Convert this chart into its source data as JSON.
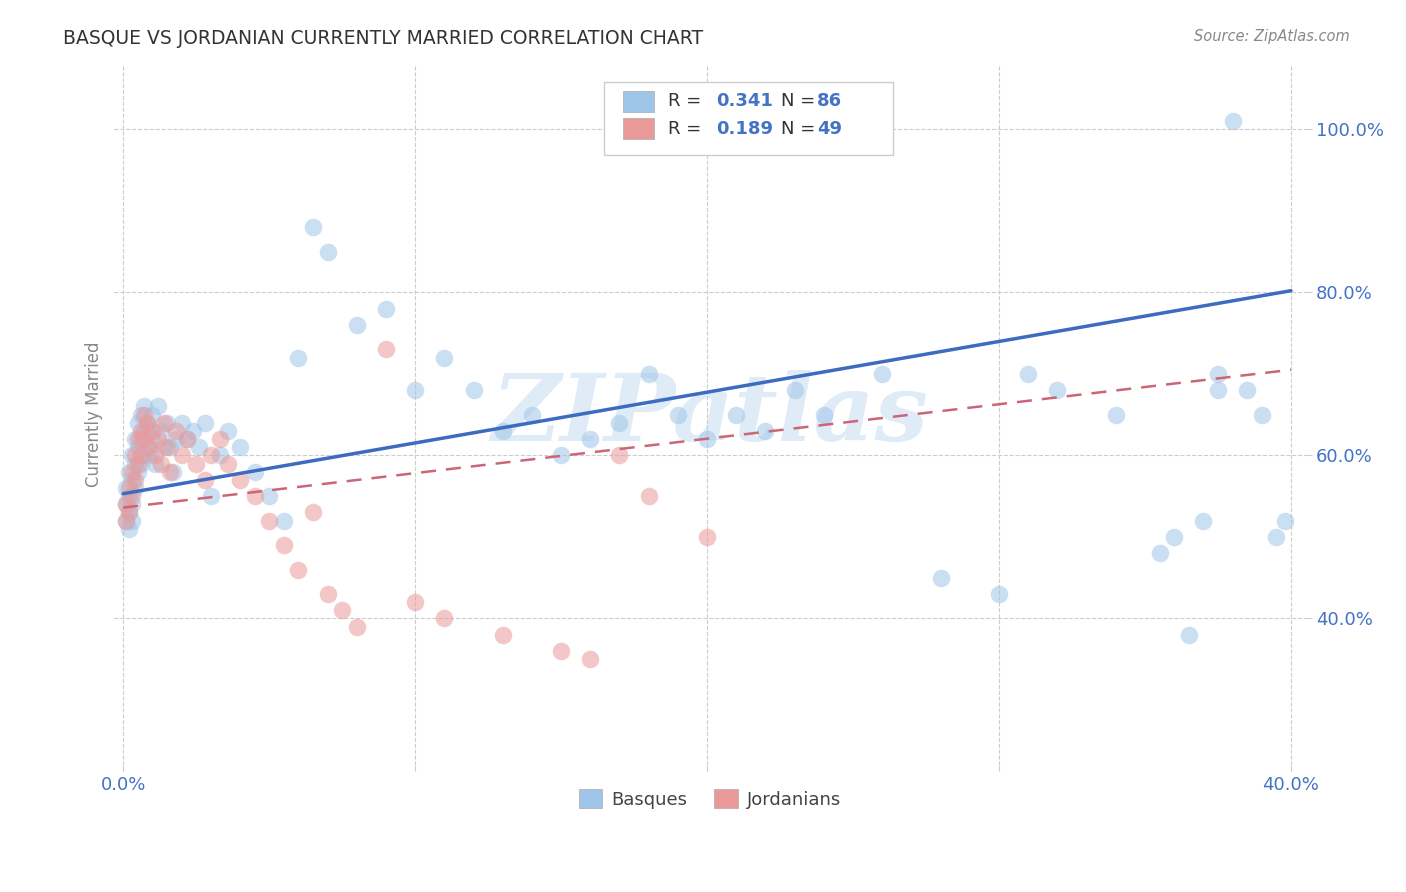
{
  "title": "BASQUE VS JORDANIAN CURRENTLY MARRIED CORRELATION CHART",
  "source": "Source: ZipAtlas.com",
  "ylabel": "Currently Married",
  "label_basque": "Basques",
  "label_jordanian": "Jordanians",
  "watermark": "ZIPatlas",
  "R_basque": "0.341",
  "N_basque": "86",
  "R_jordanian": "0.189",
  "N_jordanian": "49",
  "xlim": [
    -0.003,
    0.405
  ],
  "ylim": [
    0.22,
    1.08
  ],
  "yticks": [
    0.4,
    0.6,
    0.8,
    1.0
  ],
  "ytick_labels": [
    "40.0%",
    "60.0%",
    "80.0%",
    "100.0%"
  ],
  "xticks": [
    0.0,
    0.1,
    0.2,
    0.3,
    0.4
  ],
  "xtick_labels": [
    "0.0%",
    "",
    "",
    "",
    "40.0%"
  ],
  "basque_color": "#9fc5e8",
  "jordanian_color": "#ea9999",
  "basque_line_color": "#3d6bbf",
  "jordanian_line_color": "#cc6677",
  "axis_tick_color": "#4472c4",
  "grid_color": "#cccccc",
  "background_color": "#ffffff",
  "title_color": "#333333",
  "source_color": "#888888",
  "ylabel_color": "#888888",
  "marker_size": 160,
  "marker_alpha": 0.55,
  "basque_line_x": [
    0.0,
    0.4
  ],
  "basque_line_y": [
    0.553,
    0.802
  ],
  "jordanian_line_x": [
    0.0,
    0.4
  ],
  "jordanian_line_y": [
    0.536,
    0.705
  ],
  "basque_x": [
    0.001,
    0.001,
    0.001,
    0.002,
    0.002,
    0.002,
    0.002,
    0.003,
    0.003,
    0.003,
    0.003,
    0.004,
    0.004,
    0.004,
    0.005,
    0.005,
    0.005,
    0.006,
    0.006,
    0.006,
    0.007,
    0.007,
    0.007,
    0.008,
    0.008,
    0.009,
    0.009,
    0.01,
    0.01,
    0.011,
    0.012,
    0.013,
    0.014,
    0.015,
    0.016,
    0.017,
    0.018,
    0.02,
    0.022,
    0.024,
    0.026,
    0.028,
    0.03,
    0.033,
    0.036,
    0.04,
    0.045,
    0.05,
    0.055,
    0.06,
    0.065,
    0.07,
    0.08,
    0.09,
    0.1,
    0.11,
    0.12,
    0.13,
    0.14,
    0.15,
    0.16,
    0.17,
    0.18,
    0.19,
    0.2,
    0.21,
    0.22,
    0.23,
    0.24,
    0.26,
    0.28,
    0.3,
    0.31,
    0.32,
    0.34,
    0.355,
    0.365,
    0.375,
    0.385,
    0.39,
    0.395,
    0.398,
    0.38,
    0.375,
    0.37,
    0.36
  ],
  "basque_y": [
    0.56,
    0.54,
    0.52,
    0.58,
    0.55,
    0.53,
    0.51,
    0.6,
    0.57,
    0.54,
    0.52,
    0.62,
    0.59,
    0.56,
    0.64,
    0.61,
    0.58,
    0.65,
    0.62,
    0.59,
    0.66,
    0.63,
    0.6,
    0.64,
    0.61,
    0.63,
    0.6,
    0.65,
    0.62,
    0.59,
    0.66,
    0.63,
    0.61,
    0.64,
    0.61,
    0.58,
    0.62,
    0.64,
    0.62,
    0.63,
    0.61,
    0.64,
    0.55,
    0.6,
    0.63,
    0.61,
    0.58,
    0.55,
    0.52,
    0.72,
    0.88,
    0.85,
    0.76,
    0.78,
    0.68,
    0.72,
    0.68,
    0.63,
    0.65,
    0.6,
    0.62,
    0.64,
    0.7,
    0.65,
    0.62,
    0.65,
    0.63,
    0.68,
    0.65,
    0.7,
    0.45,
    0.43,
    0.7,
    0.68,
    0.65,
    0.48,
    0.38,
    0.7,
    0.68,
    0.65,
    0.5,
    0.52,
    1.01,
    0.68,
    0.52,
    0.5
  ],
  "jordanian_x": [
    0.001,
    0.001,
    0.002,
    0.002,
    0.003,
    0.003,
    0.004,
    0.004,
    0.005,
    0.005,
    0.006,
    0.006,
    0.007,
    0.007,
    0.008,
    0.009,
    0.01,
    0.011,
    0.012,
    0.013,
    0.014,
    0.015,
    0.016,
    0.018,
    0.02,
    0.022,
    0.025,
    0.028,
    0.03,
    0.033,
    0.036,
    0.04,
    0.045,
    0.05,
    0.055,
    0.06,
    0.065,
    0.07,
    0.075,
    0.08,
    0.09,
    0.1,
    0.11,
    0.13,
    0.15,
    0.16,
    0.17,
    0.18,
    0.2
  ],
  "jordanian_y": [
    0.54,
    0.52,
    0.56,
    0.53,
    0.58,
    0.55,
    0.6,
    0.57,
    0.62,
    0.59,
    0.63,
    0.6,
    0.65,
    0.62,
    0.64,
    0.61,
    0.63,
    0.6,
    0.62,
    0.59,
    0.64,
    0.61,
    0.58,
    0.63,
    0.6,
    0.62,
    0.59,
    0.57,
    0.6,
    0.62,
    0.59,
    0.57,
    0.55,
    0.52,
    0.49,
    0.46,
    0.53,
    0.43,
    0.41,
    0.39,
    0.73,
    0.42,
    0.4,
    0.38,
    0.36,
    0.35,
    0.6,
    0.55,
    0.5
  ]
}
